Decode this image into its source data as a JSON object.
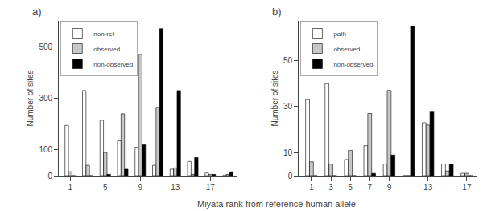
{
  "chart_data": [
    {
      "type": "bar",
      "title": "a)",
      "x": [
        1,
        3,
        5,
        7,
        9,
        11,
        13,
        15,
        17,
        19
      ],
      "xlim": [
        -0.3,
        20
      ],
      "xticks": [
        1,
        5,
        9,
        13,
        17
      ],
      "ylabel": "Number of sites",
      "ylim": [
        0,
        600.25
      ],
      "yticks": [
        0,
        100,
        300,
        500
      ],
      "series": [
        {
          "name": "non-ref",
          "color": "white",
          "values": [
            195,
            330,
            215,
            135,
            110,
            40,
            25,
            55,
            10,
            0
          ]
        },
        {
          "name": "observed",
          "color": "#c8c8c8",
          "values": [
            15,
            40,
            90,
            240,
            470,
            265,
            30,
            5,
            5,
            5
          ]
        },
        {
          "name": "non-observed",
          "color": "black",
          "values": [
            0,
            0,
            5,
            25,
            120,
            570,
            330,
            70,
            5,
            15
          ]
        }
      ],
      "legend": "upper left",
      "grid": false
    },
    {
      "type": "bar",
      "title": "b)",
      "x": [
        1,
        3,
        5,
        7,
        9,
        11,
        13,
        15,
        17
      ],
      "xlim": [
        -0.3,
        18
      ],
      "xticks": [
        1,
        3,
        5,
        7,
        9,
        13,
        17
      ],
      "ylabel": "Number of sites",
      "ylim": [
        0,
        67.24
      ],
      "yticks": [
        0,
        10,
        30,
        50
      ],
      "series": [
        {
          "name": "path",
          "color": "white",
          "values": [
            33,
            40,
            7,
            13,
            5,
            0,
            23,
            5,
            1
          ]
        },
        {
          "name": "observed",
          "color": "#c8c8c8",
          "values": [
            6,
            5,
            11,
            27,
            37,
            0,
            22,
            2,
            1
          ]
        },
        {
          "name": "non-observed",
          "color": "black",
          "values": [
            0,
            0,
            0,
            1,
            9,
            65,
            28,
            5,
            0
          ]
        }
      ],
      "legend": "upper left",
      "grid": false
    }
  ],
  "xlabel": "Miyata rank from reference human allele"
}
